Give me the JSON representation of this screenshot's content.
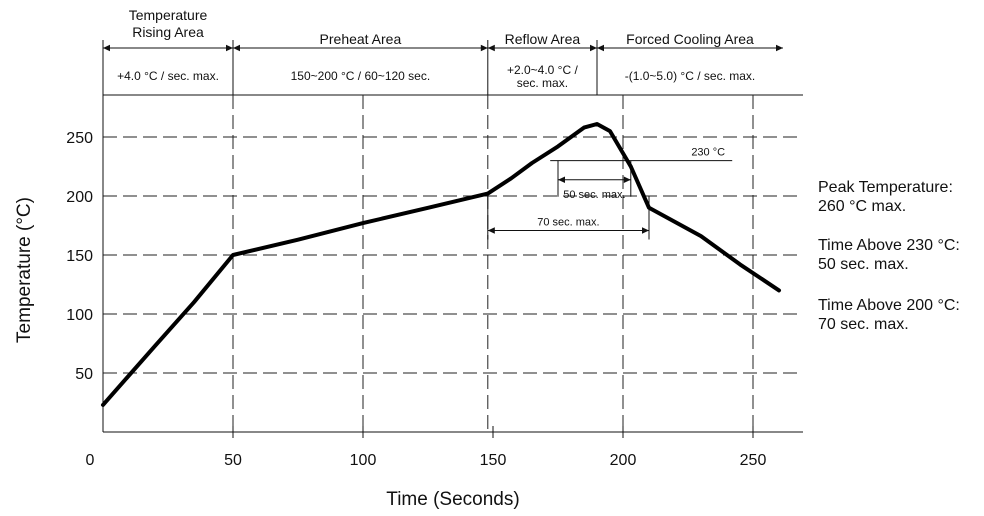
{
  "chart_data": {
    "type": "line",
    "xlabel": "Time (Seconds)",
    "ylabel": "Temperature (°C)",
    "xlim": [
      0,
      270
    ],
    "ylim": [
      0,
      280
    ],
    "x_ticks": [
      0,
      50,
      100,
      150,
      200,
      250
    ],
    "y_ticks": [
      50,
      100,
      150,
      200,
      250
    ],
    "grid": true,
    "series": [
      {
        "values": [
          [
            0,
            23
          ],
          [
            20,
            73
          ],
          [
            35,
            110
          ],
          [
            50,
            150
          ],
          [
            75,
            163
          ],
          [
            100,
            177
          ],
          [
            125,
            190
          ],
          [
            148,
            202
          ],
          [
            157,
            215
          ],
          [
            165,
            228
          ],
          [
            175,
            242
          ],
          [
            185,
            258
          ],
          [
            190,
            261
          ],
          [
            195,
            255
          ],
          [
            203,
            225
          ],
          [
            210,
            190
          ],
          [
            230,
            166
          ],
          [
            245,
            142
          ],
          [
            260,
            120
          ]
        ]
      }
    ],
    "zones": [
      {
        "title_lines": [
          "Temperature",
          "Rising Area"
        ],
        "rate_lines": [
          "+4.0 °C / sec. max."
        ],
        "x_start": 0,
        "x_end": 50
      },
      {
        "title_lines": [
          "Preheat Area"
        ],
        "rate_lines": [
          "150~200 °C / 60~120 sec."
        ],
        "x_start": 50,
        "x_end": 148
      },
      {
        "title_lines": [
          "Reflow Area"
        ],
        "rate_lines": [
          "+2.0~4.0 °C /",
          "sec. max."
        ],
        "x_start": 148,
        "x_end": 190
      },
      {
        "title_lines": [
          "Forced Cooling Area"
        ],
        "rate_lines": [
          "-(1.0~5.0) °C / sec. max."
        ],
        "x_start": 190,
        "x_end": 270
      }
    ],
    "annotations": {
      "ref_230": {
        "label": "230 °C",
        "y": 230,
        "x_start": 172,
        "x_end": 242
      },
      "span_50": {
        "label": "50 sec. max.",
        "x_start": 175,
        "x_end": 203,
        "y": 218
      },
      "span_70": {
        "label": "70 sec. max.",
        "x_start": 148,
        "x_end": 210,
        "y": 175
      }
    }
  },
  "notes": [
    {
      "lines": [
        "Peak Temperature:",
        "260 °C max."
      ]
    },
    {
      "lines": [
        "Time Above 230 °C:",
        "50 sec. max."
      ]
    },
    {
      "lines": [
        "Time Above 200 °C:",
        "70 sec. max."
      ]
    }
  ],
  "colors": {
    "curve": "#000000",
    "grid": "#222222",
    "text": "#111111"
  }
}
